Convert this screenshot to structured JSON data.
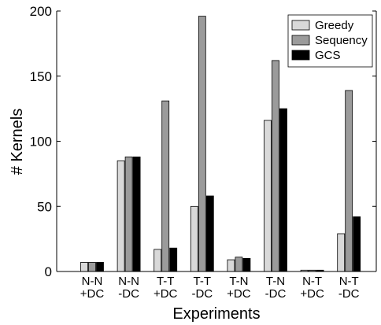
{
  "chart_data": {
    "type": "bar",
    "categories": [
      [
        "N-N",
        "+DC"
      ],
      [
        "N-N",
        "-DC"
      ],
      [
        "T-T",
        "+DC"
      ],
      [
        "T-T",
        "-DC"
      ],
      [
        "T-N",
        "+DC"
      ],
      [
        "T-N",
        "-DC"
      ],
      [
        "N-T",
        "+DC"
      ],
      [
        "N-T",
        "-DC"
      ]
    ],
    "series": [
      {
        "name": "Greedy",
        "color": "#d9d9d9",
        "values": [
          7,
          85,
          17,
          50,
          9,
          116,
          1,
          29
        ]
      },
      {
        "name": "Sequency",
        "color": "#9b9b9b",
        "values": [
          7,
          88,
          131,
          196,
          11,
          162,
          1,
          139
        ]
      },
      {
        "name": "GCS",
        "color": "#000000",
        "values": [
          7,
          88,
          18,
          58,
          10,
          125,
          1,
          42
        ]
      }
    ],
    "title": "",
    "xlabel": "Experiments",
    "ylabel": "# Kernels",
    "ylim": [
      0,
      200
    ],
    "yticks": [
      "0",
      "50",
      "100",
      "150",
      "200"
    ],
    "grid": false,
    "legend_position": "top-right"
  }
}
